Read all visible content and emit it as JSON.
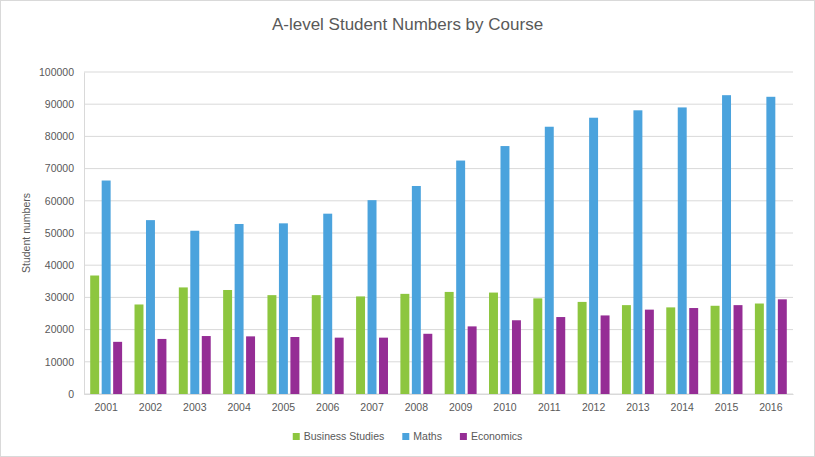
{
  "chart_data": {
    "type": "bar",
    "title": "A-level Student Numbers by Course",
    "y_label": "Student numbers",
    "categories": [
      "2001",
      "2002",
      "2003",
      "2004",
      "2005",
      "2006",
      "2007",
      "2008",
      "2009",
      "2010",
      "2011",
      "2012",
      "2013",
      "2014",
      "2015",
      "2016"
    ],
    "series": [
      {
        "name": "Business Studies",
        "color": "#8dc63f",
        "values": [
          36800,
          27800,
          33100,
          32300,
          30700,
          30700,
          30300,
          31100,
          31700,
          31500,
          29700,
          28600,
          27600,
          26900,
          27400,
          28100
        ]
      },
      {
        "name": "Maths",
        "color": "#4ba3dd",
        "values": [
          66300,
          54000,
          50700,
          52800,
          53000,
          56000,
          60200,
          64600,
          72500,
          77000,
          83000,
          85800,
          88100,
          89000,
          92800,
          92300
        ]
      },
      {
        "name": "Economics",
        "color": "#952d95",
        "values": [
          16200,
          17100,
          18000,
          17900,
          17700,
          17500,
          17500,
          18700,
          21000,
          22900,
          23900,
          24400,
          26200,
          26700,
          27600,
          29400
        ]
      }
    ],
    "ylim": [
      0,
      100000
    ],
    "yticks": [
      0,
      10000,
      20000,
      30000,
      40000,
      50000,
      60000,
      70000,
      80000,
      90000,
      100000
    ],
    "grid": true,
    "legend": "bottom"
  }
}
